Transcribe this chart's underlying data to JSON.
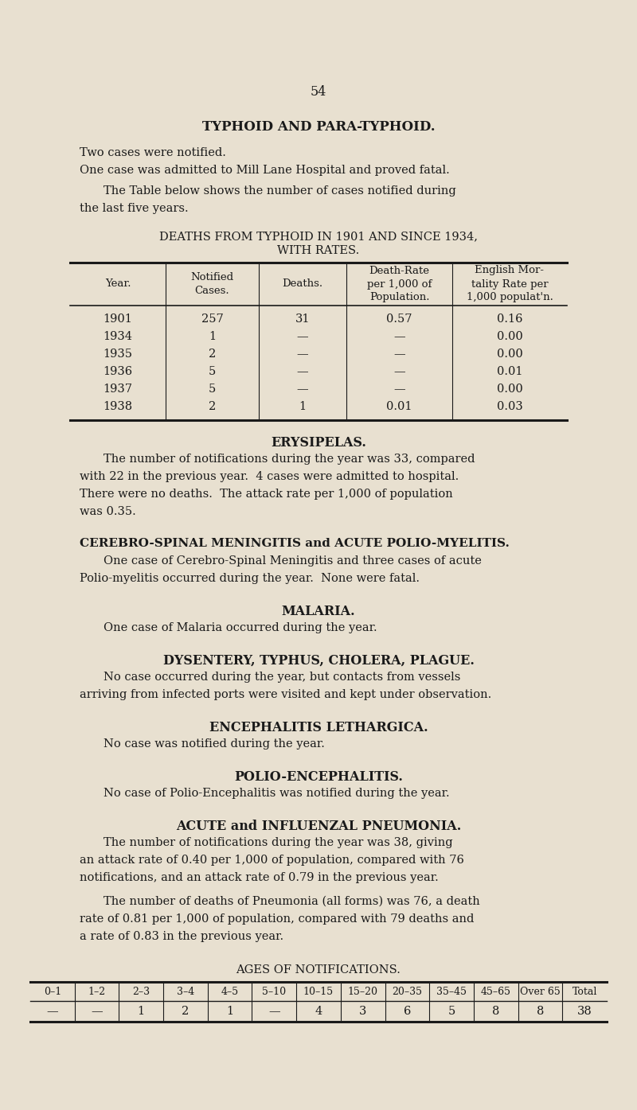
{
  "bg_color": "#e8e0d0",
  "text_color": "#1a1a1a",
  "page_number": "54",
  "section1_title": "TYPHOID AND PARA-TYPHOID.",
  "section1_para1": "Two cases were notified.",
  "section1_para2": "One case was admitted to Mill Lane Hospital and proved fatal.",
  "section1_para3_line1": "The Table below shows the number of cases notified during",
  "section1_para3_line2": "the last five years.",
  "table1_title_line1": "DEATHS FROM TYPHOID IN 1901 AND SINCE 1934,",
  "table1_title_line2": "WITH RATES.",
  "table1_headers": [
    "Year.",
    "Notified\nCases.",
    "Deaths.",
    "Death-Rate\nper 1,000 of\nPopulation.",
    "English Mor-\ntality Rate per\n1,000 populat'n."
  ],
  "table1_rows": [
    [
      "1901",
      "257",
      "31",
      "0.57",
      "0.16"
    ],
    [
      "1934",
      "1",
      "—",
      "—",
      "0.00"
    ],
    [
      "1935",
      "2",
      "—",
      "—",
      "0.00"
    ],
    [
      "1936",
      "5",
      "—",
      "—",
      "0.01"
    ],
    [
      "1937",
      "5",
      "—",
      "—",
      "0.00"
    ],
    [
      "1938",
      "2",
      "1",
      "0.01",
      "0.03"
    ]
  ],
  "section2_title": "ERYSIPELAS.",
  "section2_body_lines": [
    "The number of notifications during the year was 33, compared",
    "with 22 in the previous year.  4 cases were admitted to hospital.",
    "There were no deaths.  The attack rate per 1,000 of population",
    "was 0.35."
  ],
  "section3_title": "CEREBRO-SPINAL MENINGITIS and ACUTE POLIO-MYELITIS.",
  "section3_body_lines": [
    "One case of Cerebro-Spinal Meningitis and three cases of acute",
    "Polio-myelitis occurred during the year.  None were fatal."
  ],
  "section4_title": "MALARIA.",
  "section4_body": "One case of Malaria occurred during the year.",
  "section5_title": "DYSENTERY, TYPHUS, CHOLERA, PLAGUE.",
  "section5_body_lines": [
    "No case occurred during the year, but contacts from vessels",
    "arriving from infected ports were visited and kept under observation."
  ],
  "section6_title": "ENCEPHALITIS LETHARGICA.",
  "section6_body": "No case was notified during the year.",
  "section7_title": "POLIO-ENCEPHALITIS.",
  "section7_body": "No case of Polio-Encephalitis was notified during the year.",
  "section8_title": "ACUTE and INFLUENZAL PNEUMONIA.",
  "section8_body1_lines": [
    "The number of notifications during the year was 38, giving",
    "an attack rate of 0.40 per 1,000 of population, compared with 76",
    "notifications, and an attack rate of 0.79 in the previous year."
  ],
  "section8_body2_lines": [
    "The number of deaths of Pneumonia (all forms) was 76, a death",
    "rate of 0.81 per 1,000 of population, compared with 79 deaths and",
    "a rate of 0.83 in the previous year."
  ],
  "table2_title": "AGES OF NOTIFICATIONS.",
  "table2_headers": [
    "0–1",
    "1–2",
    "2–3",
    "3–4",
    "4–5",
    "5–10",
    "10–15",
    "15–20",
    "20–35",
    "35–45",
    "45–65",
    "Over 65",
    "Total"
  ],
  "table2_row": [
    "—",
    "—",
    "1",
    "2",
    "1",
    "—",
    "4",
    "3",
    "6",
    "5",
    "8",
    "8",
    "38"
  ]
}
